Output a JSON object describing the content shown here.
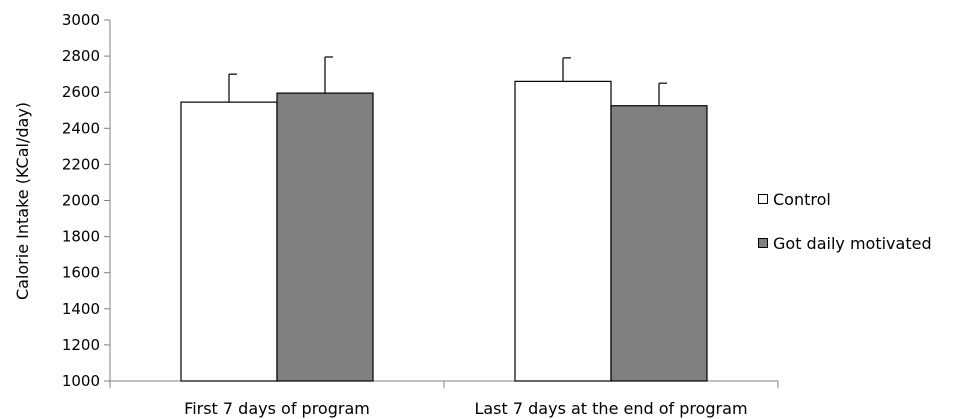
{
  "chart_data": {
    "type": "bar",
    "ylabel": "Calorie Intake (KCal/day)",
    "ylim": [
      1000,
      3000
    ],
    "yticks": [
      "1000",
      "1200",
      "1400",
      "1600",
      "1800",
      "2000",
      "2200",
      "2400",
      "2600",
      "2800",
      "3000"
    ],
    "categories": [
      "First 7 days of program",
      "Last 7 days at the end of program"
    ],
    "series": [
      {
        "name": "Control",
        "values": [
          2545,
          2660
        ],
        "errors": [
          155,
          130
        ],
        "color": "#ffffff"
      },
      {
        "name": "Got daily motivated",
        "values": [
          2595,
          2525
        ],
        "errors": [
          200,
          125
        ],
        "color": "#808080"
      }
    ],
    "legend_position": "right",
    "grid": false
  }
}
